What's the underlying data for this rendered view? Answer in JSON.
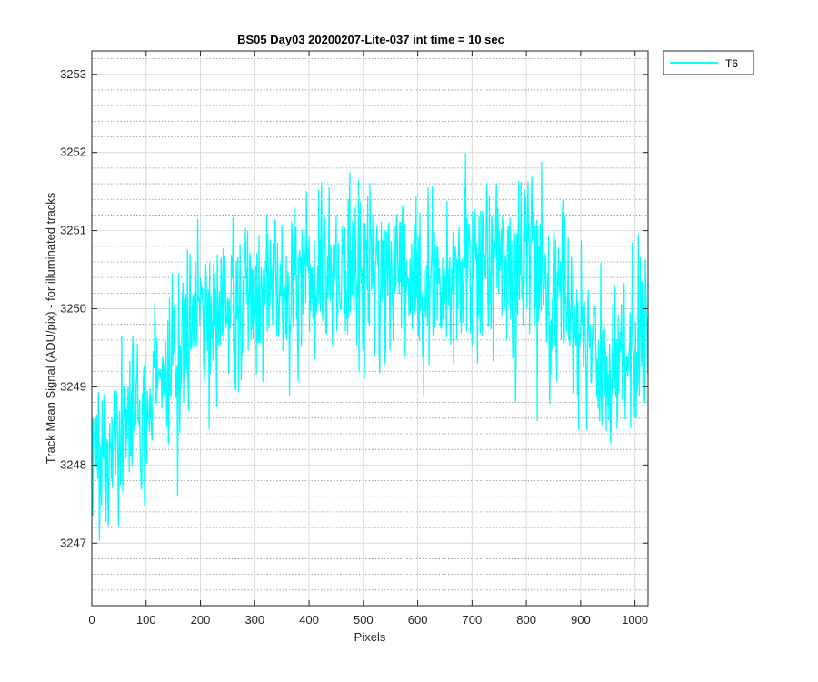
{
  "chart_data": {
    "type": "line",
    "title": "BS05 Day03 20200207-Lite-037 int time = 10 sec",
    "xlabel": "Pixels",
    "ylabel": "Track Mean Signal (ADU/pix) - for illuminated tracks",
    "xlim": [
      0,
      1024
    ],
    "ylim": [
      3246.2,
      3253.3
    ],
    "xticks": [
      0,
      100,
      200,
      300,
      400,
      500,
      600,
      700,
      800,
      900,
      1000
    ],
    "yticks": [
      3247,
      3248,
      3249,
      3250,
      3251,
      3252,
      3253
    ],
    "grid": true,
    "minor_grid": true,
    "legend": "outside-top-right",
    "series": [
      {
        "name": "T6",
        "color": "#00FFFF",
        "trend": {
          "x": [
            0,
            25,
            50,
            75,
            100,
            130,
            160,
            200,
            250,
            300,
            350,
            400,
            450,
            500,
            550,
            600,
            650,
            700,
            750,
            800,
            850,
            880,
            900,
            930,
            960,
            990,
            1024
          ],
          "y": [
            3248.2,
            3248.3,
            3248.4,
            3248.6,
            3248.9,
            3249.3,
            3249.6,
            3249.8,
            3250.0,
            3250.1,
            3250.2,
            3250.4,
            3250.4,
            3250.5,
            3250.4,
            3250.3,
            3250.4,
            3250.5,
            3250.6,
            3250.5,
            3250.2,
            3249.9,
            3249.6,
            3249.4,
            3249.3,
            3249.3,
            3249.6
          ]
        },
        "noise_amplitude": 0.55
      }
    ]
  }
}
